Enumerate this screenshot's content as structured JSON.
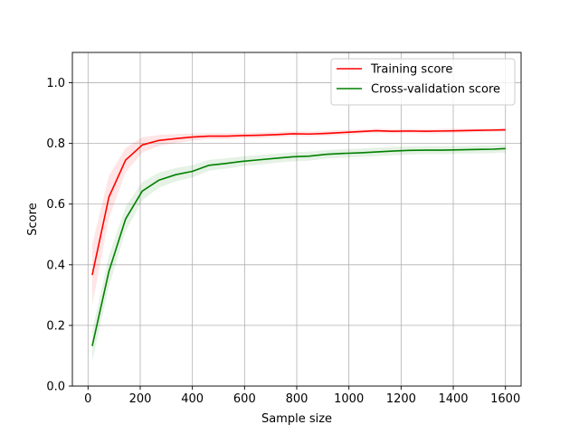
{
  "chart_data": {
    "type": "line",
    "title": "",
    "xlabel": "Sample size",
    "ylabel": "Score",
    "xlim": [
      -60,
      1660
    ],
    "ylim": [
      0.0,
      1.1
    ],
    "xticks": [
      0,
      200,
      400,
      600,
      800,
      1000,
      1200,
      1400,
      1600
    ],
    "yticks": [
      0.0,
      0.2,
      0.4,
      0.6,
      0.8,
      1.0
    ],
    "xtick_labels": [
      "0",
      "200",
      "400",
      "600",
      "800",
      "1000",
      "1200",
      "1400",
      "1600"
    ],
    "ytick_labels": [
      "0.0",
      "0.2",
      "0.4",
      "0.6",
      "0.8",
      "1.0"
    ],
    "grid": true,
    "legend_position": "top-right",
    "x": [
      16,
      80,
      144,
      208,
      272,
      336,
      400,
      464,
      528,
      592,
      656,
      720,
      784,
      848,
      912,
      976,
      1040,
      1104,
      1168,
      1232,
      1296,
      1360,
      1424,
      1488,
      1552,
      1600
    ],
    "series": [
      {
        "name": "Training score",
        "color": "#ff0000",
        "band_color": "#ff0000",
        "values": [
          0.366,
          0.623,
          0.745,
          0.795,
          0.81,
          0.816,
          0.821,
          0.824,
          0.824,
          0.826,
          0.827,
          0.829,
          0.832,
          0.831,
          0.833,
          0.836,
          0.839,
          0.842,
          0.84,
          0.841,
          0.84,
          0.841,
          0.842,
          0.843,
          0.844,
          0.845
        ],
        "std": [
          0.1,
          0.07,
          0.04,
          0.025,
          0.018,
          0.015,
          0.012,
          0.01,
          0.01,
          0.009,
          0.009,
          0.009,
          0.008,
          0.008,
          0.008,
          0.008,
          0.007,
          0.007,
          0.007,
          0.007,
          0.007,
          0.007,
          0.007,
          0.006,
          0.006,
          0.006
        ]
      },
      {
        "name": "Cross-validation score",
        "color": "#008000",
        "band_color": "#008000",
        "values": [
          0.132,
          0.378,
          0.551,
          0.643,
          0.679,
          0.697,
          0.708,
          0.728,
          0.734,
          0.741,
          0.746,
          0.751,
          0.756,
          0.758,
          0.764,
          0.767,
          0.769,
          0.772,
          0.775,
          0.777,
          0.778,
          0.778,
          0.779,
          0.78,
          0.781,
          0.783
        ],
        "std": [
          0.05,
          0.05,
          0.04,
          0.03,
          0.025,
          0.022,
          0.02,
          0.018,
          0.017,
          0.016,
          0.016,
          0.015,
          0.015,
          0.015,
          0.014,
          0.014,
          0.014,
          0.014,
          0.014,
          0.014,
          0.013,
          0.013,
          0.013,
          0.013,
          0.013,
          0.013
        ]
      }
    ]
  }
}
